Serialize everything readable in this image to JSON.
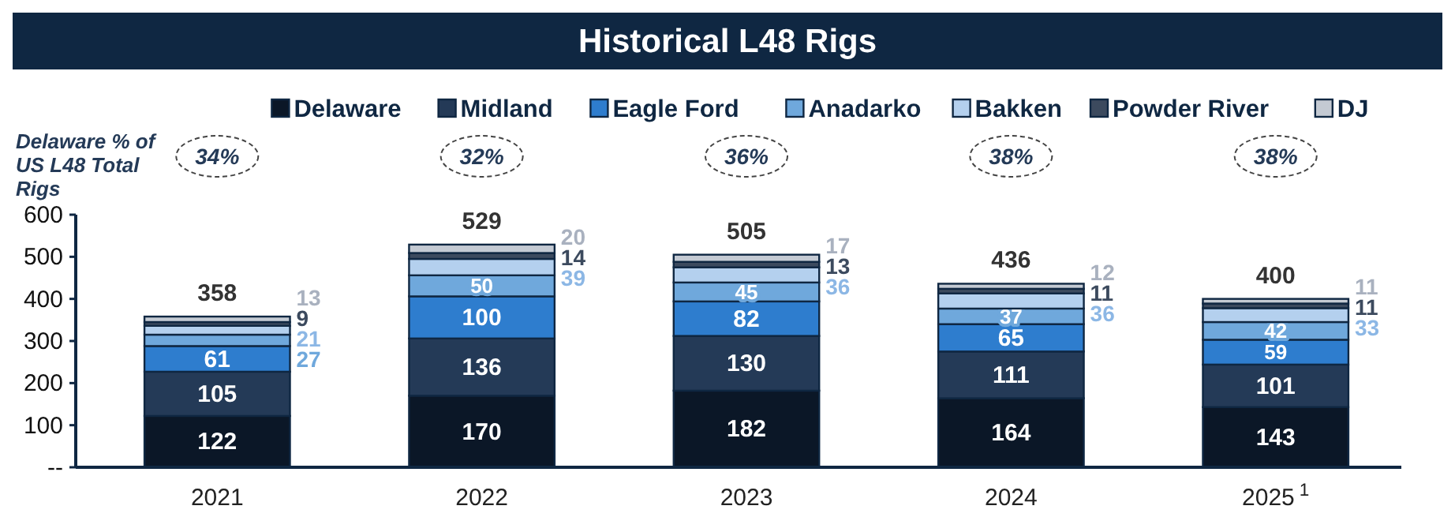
{
  "chart_data": {
    "type": "bar",
    "title": "Historical L48 Rigs",
    "stacked": true,
    "data_labels": true,
    "legend": "top",
    "grid": false,
    "categories": [
      "2021",
      "2022",
      "2023",
      "2024",
      "2025$^{1}$"
    ],
    "series": [
      {
        "name": "Delaware",
        "color": "#0b1727",
        "values": [
          122,
          170,
          182,
          164,
          143
        ]
      },
      {
        "name": "Midland",
        "color": "#243a57",
        "values": [
          105,
          136,
          130,
          111,
          101
        ]
      },
      {
        "name": "Eagle Ford",
        "color": "#2e7dce",
        "values": [
          61,
          100,
          82,
          65,
          59
        ]
      },
      {
        "name": "Anadarko",
        "color": "#6fa8dc",
        "values": [
          27,
          50,
          45,
          37,
          42
        ]
      },
      {
        "name": "Bakken",
        "color": "#b4d0ee",
        "values": [
          21,
          39,
          36,
          36,
          33
        ]
      },
      {
        "name": "Powder River",
        "color": "#3c4a5e",
        "values": [
          9,
          14,
          13,
          11,
          11
        ]
      },
      {
        "name": "DJ",
        "color": "#c4cad3",
        "values": [
          13,
          20,
          17,
          12,
          11
        ]
      }
    ],
    "totals": [
      "358",
      "529",
      "505",
      "436",
      "400"
    ],
    "ylim": [
      0,
      600
    ],
    "yticks": [
      {
        "value": 0,
        "label": "--"
      },
      100,
      200,
      300,
      400,
      500,
      600
    ],
    "annotations": [
      "Delaware % of US L48 Total Rigs",
      "34%",
      "32%",
      "36%",
      "38%",
      "38%"
    ]
  }
}
